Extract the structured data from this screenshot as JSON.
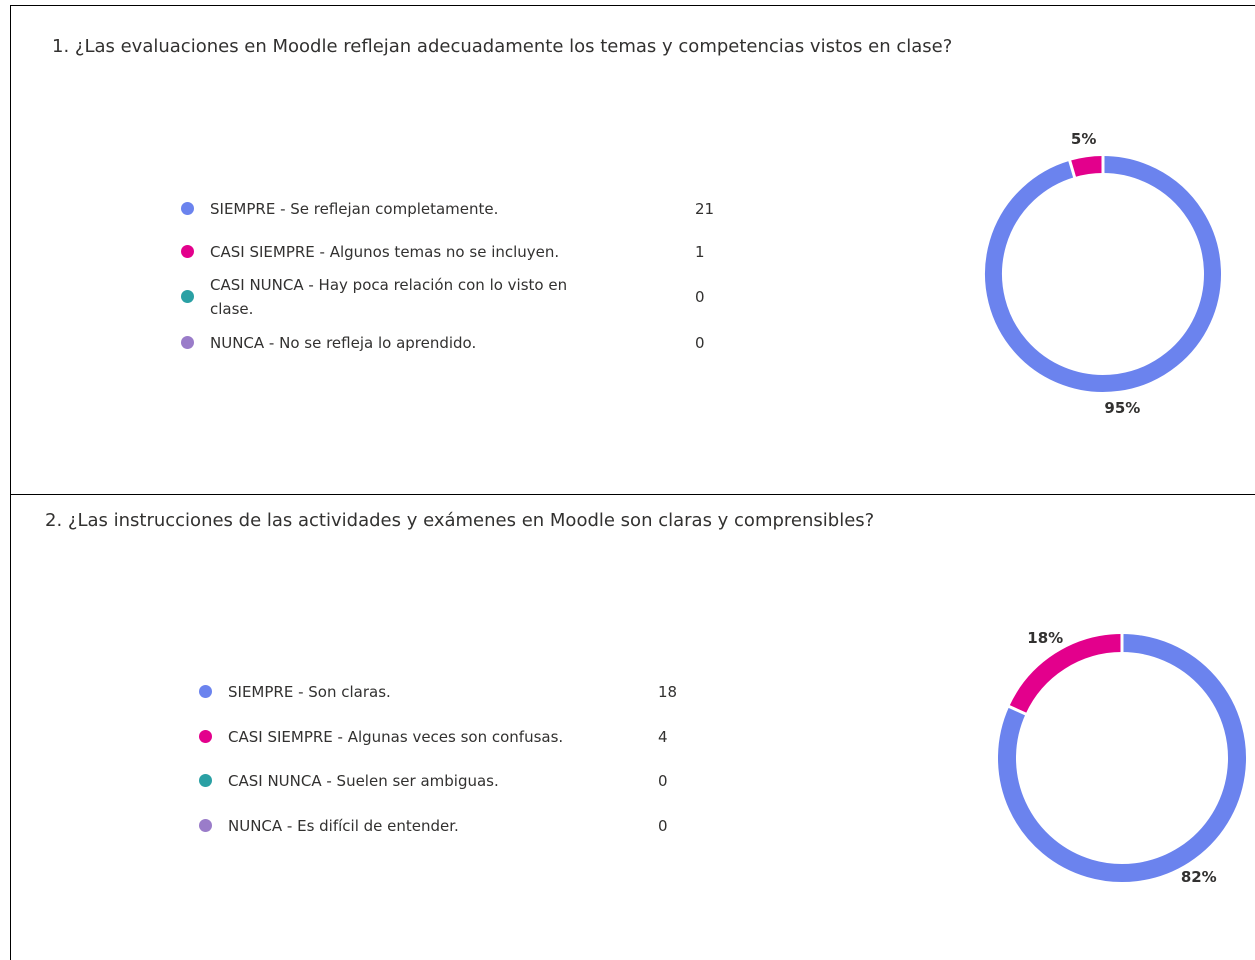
{
  "chart_data": [
    {
      "type": "pie",
      "donut": true,
      "title": "1. ¿Las evaluaciones en Moodle reflejan adecuadamente los temas y competencias vistos en clase?",
      "categories": [
        "SIEMPRE - Se reflejan completamente.",
        "CASI SIEMPRE - Algunos temas no se incluyen.",
        "CASI NUNCA - Hay poca relación con lo visto en clase.",
        "NUNCA - No se refleja lo aprendido."
      ],
      "values": [
        21,
        1,
        0,
        0
      ],
      "percentage_labels": [
        "95%",
        "5%",
        null,
        null
      ],
      "colors": [
        "#6b83ee",
        "#e3008c",
        "#2aa0a4",
        "#9a7cc9"
      ]
    },
    {
      "type": "pie",
      "donut": true,
      "title": "2. ¿Las instrucciones de las actividades y exámenes en Moodle son claras y comprensibles?",
      "categories": [
        "SIEMPRE - Son claras.",
        "CASI SIEMPRE - Algunas veces son confusas.",
        "CASI NUNCA - Suelen ser ambiguas.",
        "NUNCA - Es difícil de entender."
      ],
      "values": [
        18,
        4,
        0,
        0
      ],
      "percentage_labels": [
        "82%",
        "18%",
        null,
        null
      ],
      "colors": [
        "#6b83ee",
        "#e3008c",
        "#2aa0a4",
        "#9a7cc9"
      ]
    }
  ]
}
